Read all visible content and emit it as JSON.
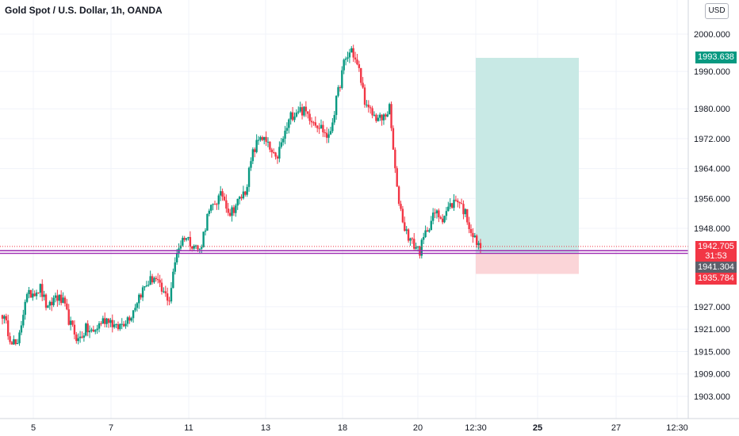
{
  "header": {
    "title": "Gold Spot / U.S. Dollar, 1h, OANDA"
  },
  "price_scale": {
    "currency": "USD"
  },
  "labels": {
    "take_profit": "1993.638",
    "last_price": "1942.705",
    "countdown": "31:53",
    "entry": "1941.304",
    "stop_loss": "1935.784"
  },
  "colors": {
    "up": "#089981",
    "down": "#f23645",
    "profit_zone": "#c8e9e5",
    "loss_zone": "#fbd5d8",
    "level_line": "#9c27b0",
    "grid": "#f0f3fa"
  },
  "chart_data": {
    "type": "candlestick",
    "symbol": "Gold Spot / U.S. Dollar",
    "timeframe": "1h",
    "source": "OANDA",
    "ylim": [
      1898,
      2006
    ],
    "y_ticks": [
      2000.0,
      1990.0,
      1980.0,
      1972.0,
      1964.0,
      1956.0,
      1948.0,
      1927.0,
      1921.0,
      1915.0,
      1909.0,
      1903.0
    ],
    "x_ticks": [
      "5",
      "7",
      "11",
      "13",
      "18",
      "20",
      "12:30",
      "25",
      "27",
      "12:30"
    ],
    "x_ticks_bold": [
      "25"
    ],
    "close_path": [
      1925,
      1919,
      1916,
      1929,
      1931,
      1932,
      1926,
      1930,
      1928,
      1922,
      1918,
      1921,
      1920,
      1923,
      1924,
      1921,
      1923,
      1925,
      1930,
      1933,
      1935,
      1931,
      1929,
      1942,
      1946,
      1944,
      1942,
      1951,
      1955,
      1957,
      1952,
      1955,
      1958,
      1968,
      1973,
      1970,
      1966,
      1972,
      1978,
      1980,
      1979,
      1977,
      1975,
      1972,
      1982,
      1992,
      1996,
      1990,
      1980,
      1978,
      1977,
      1980,
      1958,
      1948,
      1944,
      1942,
      1948,
      1952,
      1951,
      1954,
      1956,
      1952,
      1946,
      1942
    ],
    "closing_price": 1942.705,
    "horizontal_levels": [
      1942.0,
      1941.304
    ],
    "position": {
      "type": "long",
      "entry": 1941.304,
      "take_profit": 1993.638,
      "stop_loss": 1935.784
    }
  }
}
